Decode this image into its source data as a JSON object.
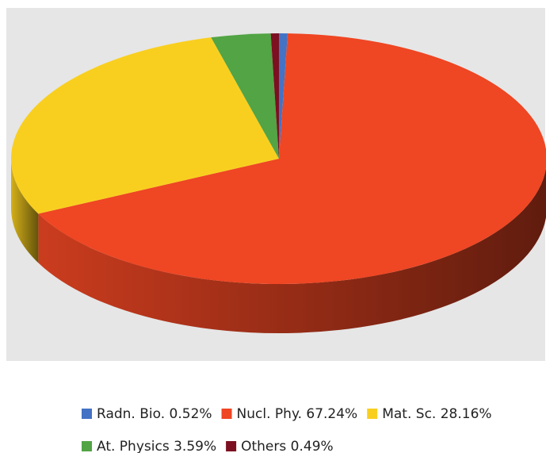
{
  "chart_data": {
    "type": "pie",
    "categories": [
      "Radn. Bio.",
      "Nucl. Phy.",
      "Mat. Sc.",
      "At. Physics",
      "Others"
    ],
    "values": [
      0.52,
      67.24,
      28.16,
      3.59,
      0.49
    ],
    "value_labels": [
      "0.52%",
      "67.24%",
      "28.16%",
      "3.59%",
      "0.49%"
    ],
    "colors": [
      "#4472c4",
      "#ef4623",
      "#f9cf1f",
      "#52a444",
      "#7c1020"
    ]
  }
}
